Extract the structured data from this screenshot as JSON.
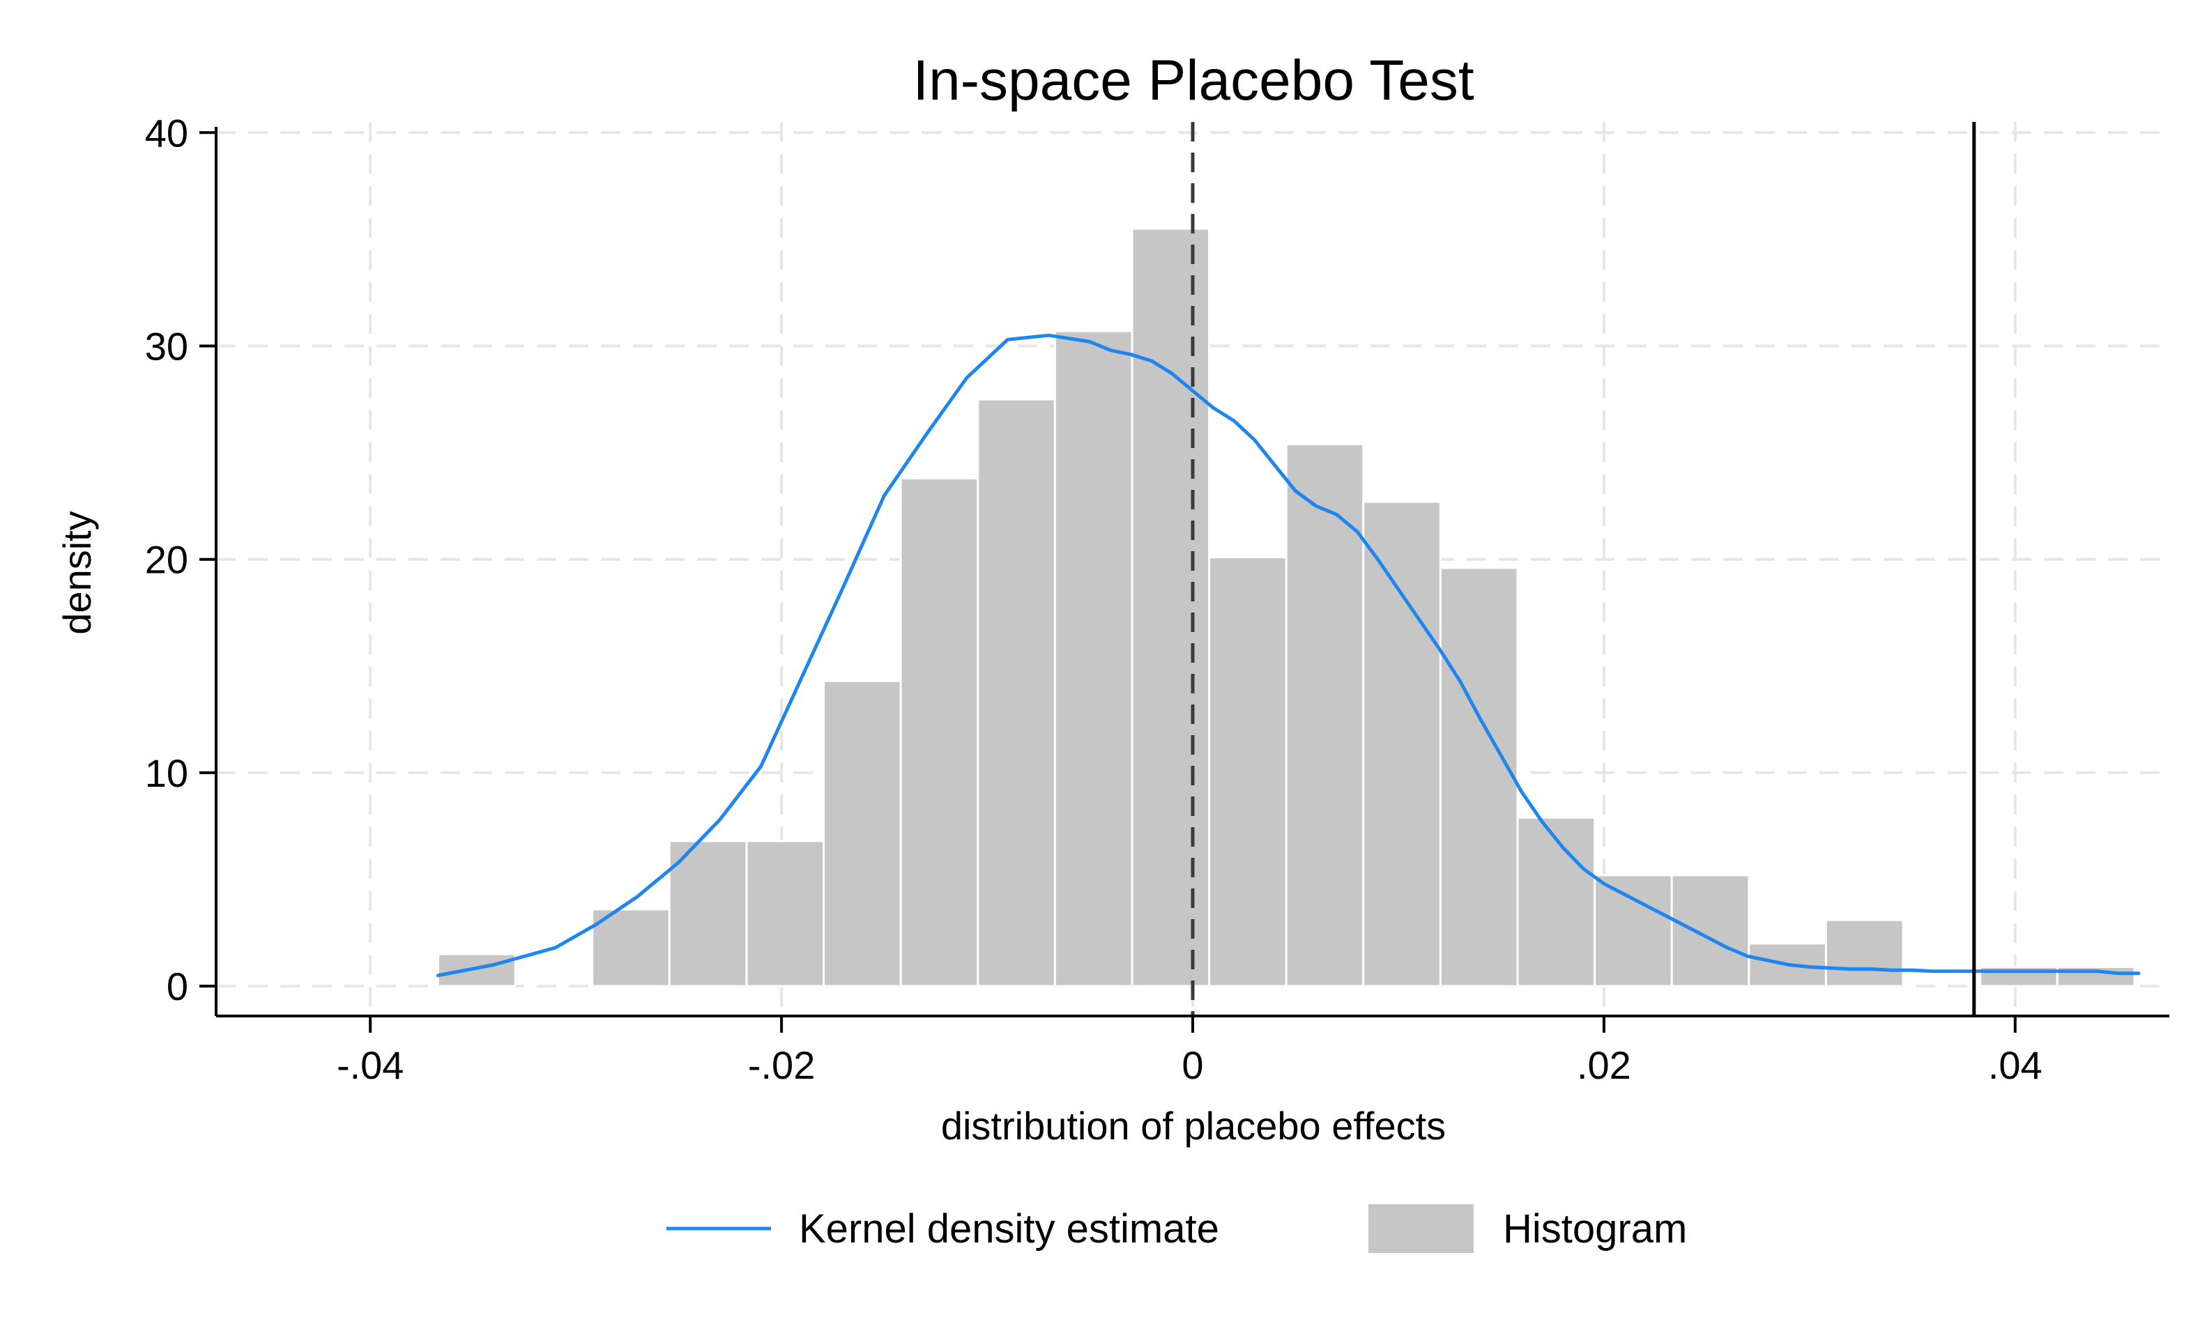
{
  "chart_data": {
    "type": "bar",
    "title": "In-space Placebo Test",
    "xlabel": "distribution of placebo effects",
    "ylabel": "density",
    "xlim": [
      -0.0475,
      0.0475
    ],
    "ylim": [
      -1.4,
      40.5
    ],
    "x_ticks": [
      {
        "value": -0.04,
        "label": "-.04"
      },
      {
        "value": -0.02,
        "label": "-.02"
      },
      {
        "value": 0,
        "label": "0"
      },
      {
        "value": 0.02,
        "label": ".02"
      },
      {
        "value": 0.04,
        "label": ".04"
      }
    ],
    "y_ticks": [
      {
        "value": 0,
        "label": "0"
      },
      {
        "value": 10,
        "label": "10"
      },
      {
        "value": 20,
        "label": "20"
      },
      {
        "value": 30,
        "label": "30"
      },
      {
        "value": 40,
        "label": "40"
      }
    ],
    "grid": true,
    "legend_position": "bottom",
    "colors": {
      "histogram": "#c6c6c6",
      "kde": "#1f86f0",
      "grid": "#e6e6e6"
    },
    "histogram": {
      "name": "Histogram",
      "bin_width": 0.00375,
      "bins": [
        {
          "start": -0.0367,
          "value": 1.5
        },
        {
          "start": -0.0292,
          "value": 3.6
        },
        {
          "start": -0.02545,
          "value": 6.8
        },
        {
          "start": -0.0217,
          "value": 6.8
        },
        {
          "start": -0.01795,
          "value": 14.3
        },
        {
          "start": -0.0142,
          "value": 23.8
        },
        {
          "start": -0.01045,
          "value": 27.5
        },
        {
          "start": -0.0067,
          "value": 30.7
        },
        {
          "start": -0.00295,
          "value": 35.5
        },
        {
          "start": 0.0008,
          "value": 20.1
        },
        {
          "start": 0.00455,
          "value": 25.4
        },
        {
          "start": 0.0083,
          "value": 22.7
        },
        {
          "start": 0.01205,
          "value": 19.6
        },
        {
          "start": 0.0158,
          "value": 7.9
        },
        {
          "start": 0.01955,
          "value": 5.2
        },
        {
          "start": 0.0233,
          "value": 5.2
        },
        {
          "start": 0.02705,
          "value": 2.0
        },
        {
          "start": 0.0308,
          "value": 3.1
        },
        {
          "start": 0.0383,
          "value": 0.9
        },
        {
          "start": 0.04205,
          "value": 0.9
        }
      ]
    },
    "kde": {
      "name": "Kernel density estimate",
      "x": [
        -0.0367,
        -0.034,
        -0.031,
        -0.029,
        -0.027,
        -0.025,
        -0.023,
        -0.021,
        -0.019,
        -0.017,
        -0.015,
        -0.013,
        -0.011,
        -0.009,
        -0.007,
        -0.005,
        -0.004,
        -0.003,
        -0.002,
        -0.001,
        0,
        0.001,
        0.002,
        0.003,
        0.004,
        0.005,
        0.006,
        0.007,
        0.008,
        0.009,
        0.01,
        0.011,
        0.012,
        0.013,
        0.014,
        0.015,
        0.016,
        0.017,
        0.018,
        0.019,
        0.02,
        0.021,
        0.022,
        0.023,
        0.024,
        0.025,
        0.026,
        0.027,
        0.028,
        0.029,
        0.03,
        0.031,
        0.032,
        0.033,
        0.034,
        0.035,
        0.036,
        0.037,
        0.038,
        0.039,
        0.04,
        0.041,
        0.042,
        0.043,
        0.044,
        0.045,
        0.046
      ],
      "y": [
        0.5,
        1.0,
        1.8,
        2.9,
        4.2,
        5.8,
        7.8,
        10.3,
        14.5,
        18.7,
        23.0,
        25.8,
        28.5,
        30.3,
        30.5,
        30.2,
        29.8,
        29.6,
        29.3,
        28.7,
        27.9,
        27.1,
        26.5,
        25.6,
        24.4,
        23.2,
        22.5,
        22.1,
        21.3,
        20.0,
        18.6,
        17.2,
        15.8,
        14.3,
        12.5,
        10.8,
        9.1,
        7.7,
        6.5,
        5.5,
        4.8,
        4.3,
        3.8,
        3.3,
        2.8,
        2.3,
        1.8,
        1.4,
        1.2,
        1.0,
        0.9,
        0.85,
        0.8,
        0.8,
        0.75,
        0.75,
        0.7,
        0.7,
        0.7,
        0.7,
        0.7,
        0.7,
        0.7,
        0.7,
        0.7,
        0.6,
        0.6
      ]
    },
    "reference_lines": [
      {
        "x": 0,
        "style": "dashed"
      },
      {
        "x": 0.038,
        "style": "solid"
      }
    ]
  }
}
